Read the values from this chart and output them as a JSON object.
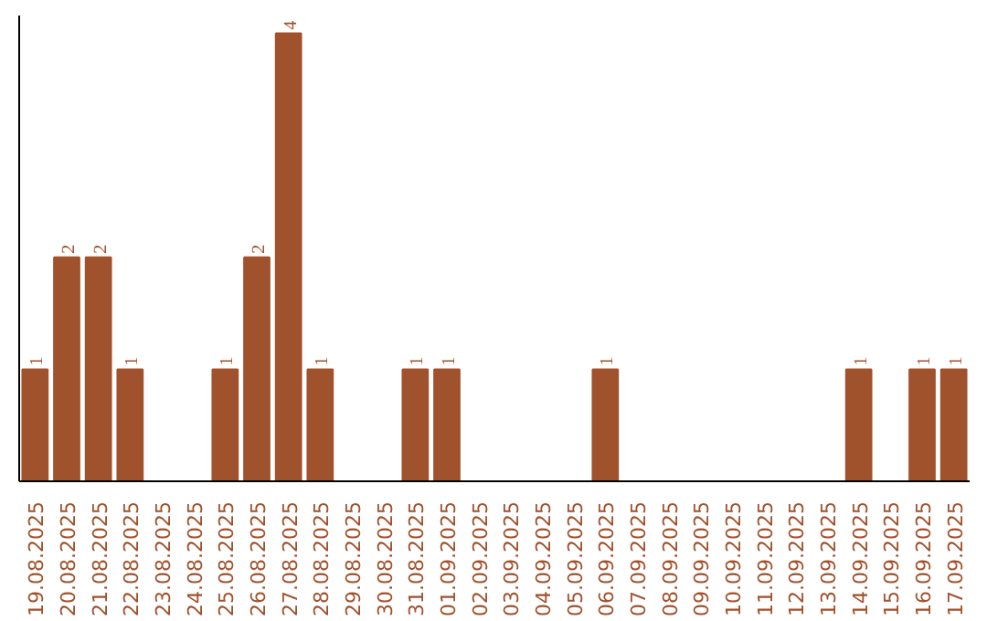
{
  "chart_data": {
    "type": "bar",
    "categories": [
      "19.08.2025",
      "20.08.2025",
      "21.08.2025",
      "22.08.2025",
      "23.08.2025",
      "24.08.2025",
      "25.08.2025",
      "26.08.2025",
      "27.08.2025",
      "28.08.2025",
      "29.08.2025",
      "30.08.2025",
      "31.08.2025",
      "01.09.2025",
      "02.09.2025",
      "03.09.2025",
      "04.09.2025",
      "05.09.2025",
      "06.09.2025",
      "07.09.2025",
      "08.09.2025",
      "09.09.2025",
      "10.09.2025",
      "11.09.2025",
      "12.09.2025",
      "13.09.2025",
      "14.09.2025",
      "15.09.2025",
      "16.09.2025",
      "17.09.2025"
    ],
    "values": [
      1,
      2,
      2,
      1,
      0,
      0,
      1,
      2,
      4,
      1,
      0,
      0,
      1,
      1,
      0,
      0,
      0,
      0,
      1,
      0,
      0,
      0,
      0,
      0,
      0,
      0,
      1,
      0,
      1,
      1
    ],
    "value_labels": [
      "1",
      "2",
      "2",
      "1",
      null,
      null,
      "1",
      "2",
      "4",
      "1",
      null,
      null,
      "1",
      "1",
      null,
      null,
      null,
      null,
      "1",
      null,
      null,
      null,
      null,
      null,
      null,
      null,
      "1",
      null,
      "1",
      "1"
    ],
    "color": "#a0522d",
    "ylim": [
      0,
      4
    ],
    "tick_labels": "x",
    "grid": false
  }
}
